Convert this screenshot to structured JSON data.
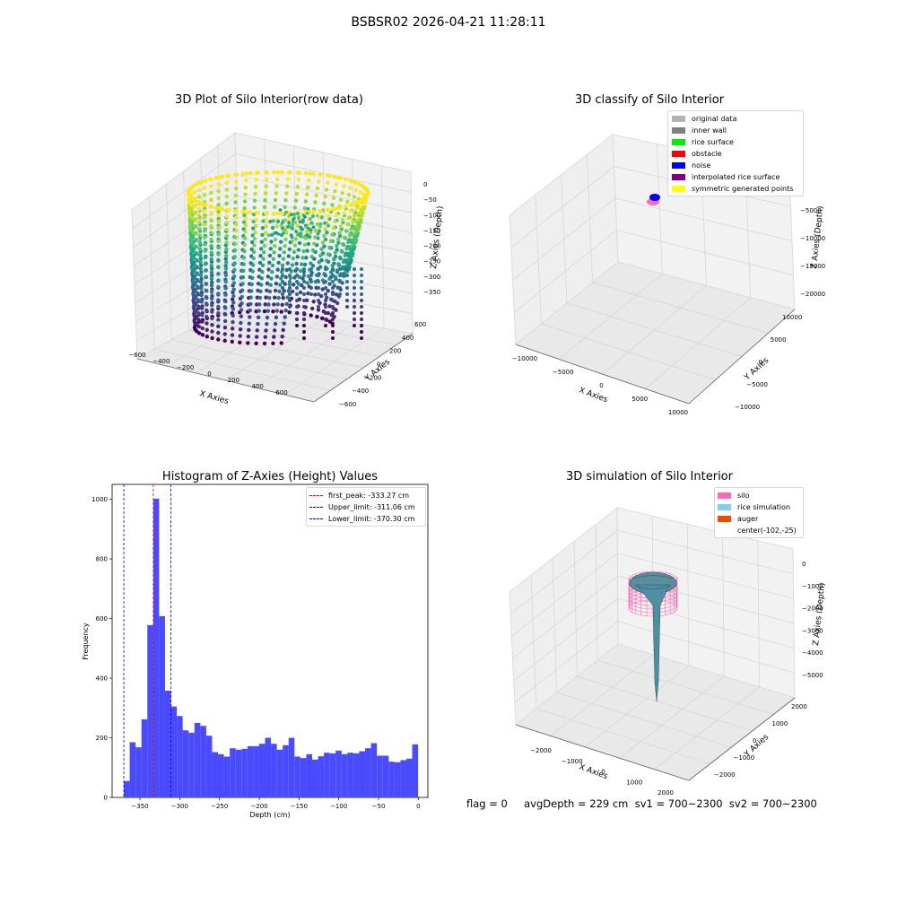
{
  "suptitle": "BSBSR02 2026-04-21 11:28:11",
  "panels": {
    "raw": {
      "title": "3D Plot of Silo Interior(row data)",
      "xlabel": "X Axies",
      "ylabel": "Y Axies",
      "zlabel": "Z Axies (Depth)",
      "xticks": [
        "−600",
        "−400",
        "−200",
        "0",
        "200",
        "400",
        "600"
      ],
      "yticks": [
        "−600",
        "−400",
        "−200",
        "0",
        "200",
        "400",
        "600"
      ],
      "zticks": [
        "0",
        "−50",
        "−100",
        "−150",
        "−200",
        "−250",
        "−300",
        "−350"
      ]
    },
    "classify": {
      "title": "3D classify of Silo Interior",
      "xlabel": "X Axies",
      "ylabel": "Y Axies",
      "zlabel": "Z Axies (Depth)",
      "xticks": [
        "−10000",
        "−5000",
        "0",
        "5000",
        "10000"
      ],
      "yticks": [
        "−10000",
        "−5000",
        "0",
        "5000",
        "10000"
      ],
      "zticks": [
        "0",
        "−5000",
        "−10000",
        "−15000",
        "−20000"
      ],
      "legend": [
        {
          "label": "original data",
          "color": "#b3b3b3"
        },
        {
          "label": "inner wall",
          "color": "#808080"
        },
        {
          "label": "rice surface",
          "color": "#00ee00"
        },
        {
          "label": "obstacle",
          "color": "#ff0000"
        },
        {
          "label": "noise",
          "color": "#0000ff"
        },
        {
          "label": "interpolated rice surface",
          "color": "#800080"
        },
        {
          "label": "symmetric generated points",
          "color": "#ffff00"
        }
      ]
    },
    "simulation": {
      "title": "3D simulation of Silo Interior",
      "xlabel": "X Axies",
      "ylabel": "Y Axies",
      "zlabel": "Z Axies (Depth)",
      "xticks": [
        "−2000",
        "−1000",
        "0",
        "1000",
        "2000"
      ],
      "yticks": [
        "−2000",
        "−1000",
        "0",
        "1000",
        "2000"
      ],
      "zticks": [
        "0",
        "−1000",
        "−2000",
        "−3000",
        "−4000",
        "−5000"
      ],
      "legend": [
        {
          "label": "silo",
          "color": "#ff69b4"
        },
        {
          "label": "rice simulation",
          "color": "#87ceeb"
        },
        {
          "label": "auger",
          "color": "#ff4500"
        },
        {
          "label": "center(-102,-25)",
          "color": ""
        }
      ]
    }
  },
  "status_line": "flag = 0     avgDepth = 229 cm  sv1 = 700~2300  sv2 = 700~2300",
  "chart_data": [
    {
      "type": "scatter",
      "title": "3D Plot of Silo Interior(row data)",
      "xlabel": "X Axies",
      "ylabel": "Y Axies",
      "zlabel": "Z Axies (Depth)",
      "xlim": [
        -650,
        650
      ],
      "ylim": [
        -650,
        650
      ],
      "zlim": [
        -390,
        10
      ],
      "colormap": "viridis",
      "grid": true
    },
    {
      "type": "scatter",
      "title": "3D classify of Silo Interior",
      "xlabel": "X Axies",
      "ylabel": "Y Axies",
      "zlabel": "Z Axies (Depth)",
      "xlim": [
        -12000,
        12000
      ],
      "ylim": [
        -12000,
        12000
      ],
      "zlim": [
        -22000,
        500
      ],
      "legend_position": "top-right",
      "grid": true
    },
    {
      "type": "histogram",
      "title": "Histogram of Z-Axies (Height) Values",
      "xlabel": "Depth (cm)",
      "ylabel": "Frequency",
      "xlim": [
        -385,
        12
      ],
      "ylim": [
        0,
        1050
      ],
      "xticks": [
        -350,
        -300,
        -250,
        -200,
        -150,
        -100,
        -50,
        0
      ],
      "yticks": [
        0,
        200,
        400,
        600,
        800,
        1000
      ],
      "bar_color": "#4a4aff",
      "bin_width": 7.4,
      "bin_start": -370.3,
      "values": [
        55,
        185,
        168,
        262,
        578,
        1002,
        608,
        358,
        305,
        273,
        225,
        217,
        250,
        240,
        207,
        152,
        145,
        137,
        165,
        160,
        163,
        172,
        172,
        180,
        200,
        180,
        160,
        175,
        200,
        137,
        132,
        145,
        127,
        138,
        150,
        148,
        157,
        145,
        150,
        148,
        155,
        165,
        182,
        140,
        140,
        120,
        118,
        125,
        130,
        178
      ],
      "lines": [
        {
          "label": "first_peak: -333.27 cm",
          "x": -333.27,
          "color": "#ff0000"
        },
        {
          "label": "Upper_limit: -311.06 cm",
          "x": -311.06,
          "color": "#0000cc"
        },
        {
          "label": "Lower_limit: -370.30 cm",
          "x": -370.3,
          "color": "#0000cc"
        }
      ],
      "legend_position": "top-right"
    },
    {
      "type": "surface",
      "title": "3D simulation of Silo Interior",
      "xlabel": "X Axies",
      "ylabel": "Y Axies",
      "zlabel": "Z Axies (Depth)",
      "xlim": [
        -2600,
        2600
      ],
      "ylim": [
        -2600,
        2600
      ],
      "zlim": [
        -5500,
        200
      ],
      "legend_position": "top-right",
      "grid": true
    }
  ]
}
